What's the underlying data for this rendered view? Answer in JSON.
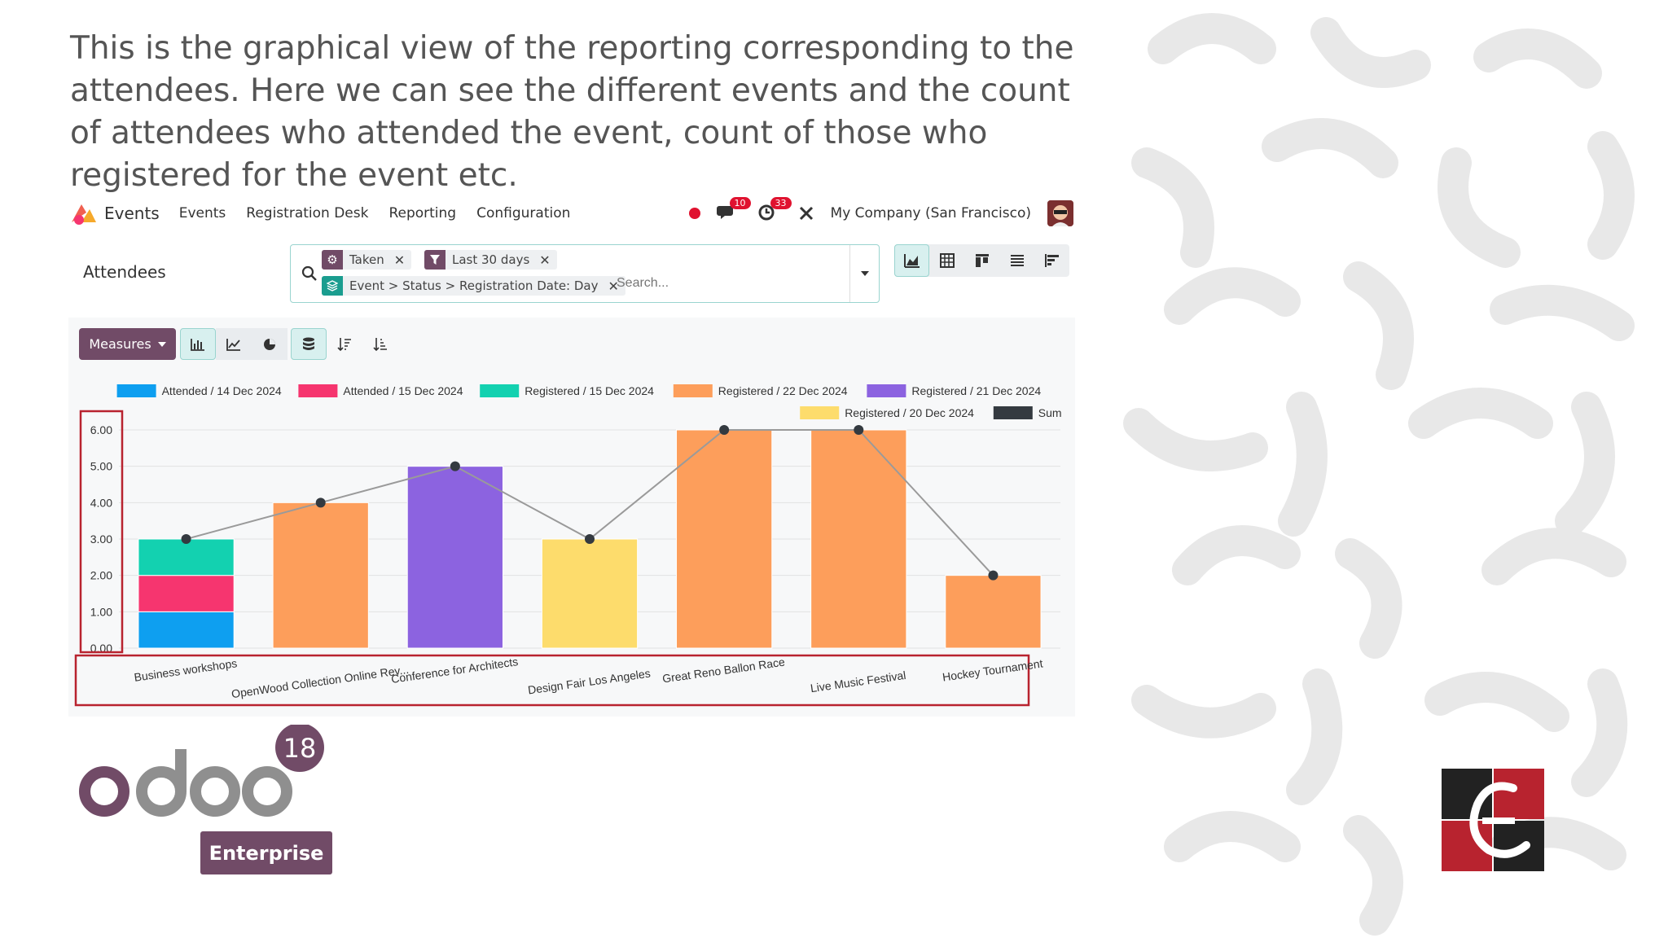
{
  "caption": "This is the graphical view of the reporting corresponding to the attendees. Here we can see the different events and the count of attendees who attended the event, count of those who registered for the event etc.",
  "navbar": {
    "app_name": "Events",
    "menu": [
      "Events",
      "Registration Desk",
      "Reporting",
      "Configuration"
    ],
    "chat_badge": "10",
    "activity_badge": "33",
    "company": "My Company (San Francisco)"
  },
  "control_panel": {
    "title": "Attendees",
    "facets": {
      "filter1": "Taken",
      "filter2": "Last 30 days",
      "groupby": "Event > Status > Registration Date: Day"
    },
    "search_placeholder": "Search..."
  },
  "toolbar": {
    "measures_label": "Measures"
  },
  "logo": {
    "version": "18",
    "edition": "Enterprise",
    "wordmark": "odoo"
  },
  "colors": {
    "attended_14": "#0e9ff0",
    "attended_15": "#f6356f",
    "registered_15": "#13d1b0",
    "registered_22": "#fd9e5b",
    "registered_21": "#8c63e0",
    "registered_20": "#fddc6c",
    "sum": "#343a40",
    "brand": "#714b67"
  },
  "chart_data": {
    "type": "bar",
    "stacked": true,
    "categories": [
      "Business workshops",
      "OpenWood Collection Online Rev...",
      "Conference for Architects",
      "Design Fair Los Angeles",
      "Great Reno Ballon Race",
      "Live Music Festival",
      "Hockey Tournament"
    ],
    "series": [
      {
        "name": "Attended / 14 Dec 2024",
        "values": [
          1,
          0,
          0,
          0,
          0,
          0,
          0
        ]
      },
      {
        "name": "Attended / 15 Dec 2024",
        "values": [
          1,
          0,
          0,
          0,
          0,
          0,
          0
        ]
      },
      {
        "name": "Registered / 15 Dec 2024",
        "values": [
          1,
          0,
          0,
          0,
          0,
          0,
          0
        ]
      },
      {
        "name": "Registered / 22 Dec 2024",
        "values": [
          0,
          4,
          0,
          0,
          6,
          6,
          2
        ]
      },
      {
        "name": "Registered / 21 Dec 2024",
        "values": [
          0,
          0,
          5,
          0,
          0,
          0,
          0
        ]
      },
      {
        "name": "Registered / 20 Dec 2024",
        "values": [
          0,
          0,
          0,
          3,
          0,
          0,
          0
        ]
      }
    ],
    "line": {
      "name": "Sum",
      "values": [
        3,
        4,
        5,
        3,
        6,
        6,
        2
      ]
    },
    "yticks": [
      "0.00",
      "1.00",
      "2.00",
      "3.00",
      "4.00",
      "5.00",
      "6.00"
    ],
    "ylim": [
      0,
      6
    ],
    "grid": true,
    "legend_position": "top-right"
  }
}
